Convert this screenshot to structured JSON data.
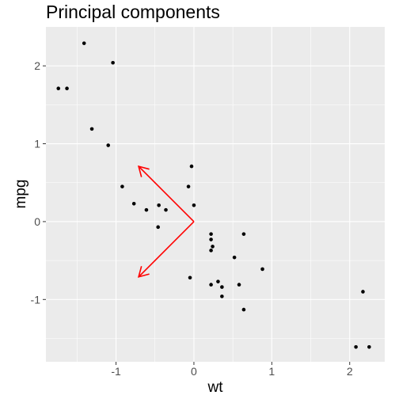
{
  "chart_data": {
    "type": "scatter",
    "title": "Principal components",
    "xlabel": "wt",
    "ylabel": "mpg",
    "xlim": [
      -1.9,
      2.45
    ],
    "ylim": [
      -1.8,
      2.5
    ],
    "x_ticks": [
      -1,
      0,
      1,
      2
    ],
    "y_ticks": [
      -1,
      0,
      1,
      2
    ],
    "grid": true,
    "legend": "none",
    "colors": {
      "panel": "#ebebeb",
      "grid_major": "#ffffff",
      "points": "#000000",
      "arrows": "#ff0000",
      "tick_label": "#4d4d4d"
    },
    "points": [
      {
        "x": -1.41,
        "y": 2.29
      },
      {
        "x": -1.04,
        "y": 2.04
      },
      {
        "x": -1.74,
        "y": 1.71
      },
      {
        "x": -1.63,
        "y": 1.71
      },
      {
        "x": -1.31,
        "y": 1.19
      },
      {
        "x": -1.1,
        "y": 0.98
      },
      {
        "x": -0.92,
        "y": 0.45
      },
      {
        "x": -0.77,
        "y": 0.23
      },
      {
        "x": -0.61,
        "y": 0.15
      },
      {
        "x": -0.45,
        "y": 0.21
      },
      {
        "x": -0.36,
        "y": 0.15
      },
      {
        "x": -0.46,
        "y": -0.07
      },
      {
        "x": -0.03,
        "y": 0.71
      },
      {
        "x": -0.07,
        "y": 0.45
      },
      {
        "x": 0.0,
        "y": 0.21
      },
      {
        "x": -0.05,
        "y": -0.72
      },
      {
        "x": 0.22,
        "y": -0.16
      },
      {
        "x": 0.22,
        "y": -0.23
      },
      {
        "x": 0.24,
        "y": -0.32
      },
      {
        "x": 0.22,
        "y": -0.37
      },
      {
        "x": 0.64,
        "y": -0.16
      },
      {
        "x": 0.52,
        "y": -0.46
      },
      {
        "x": 0.88,
        "y": -0.61
      },
      {
        "x": 0.22,
        "y": -0.81
      },
      {
        "x": 0.31,
        "y": -0.77
      },
      {
        "x": 0.36,
        "y": -0.84
      },
      {
        "x": 0.58,
        "y": -0.81
      },
      {
        "x": 0.36,
        "y": -0.96
      },
      {
        "x": 0.64,
        "y": -1.13
      },
      {
        "x": 2.17,
        "y": -0.9
      },
      {
        "x": 2.08,
        "y": -1.61
      },
      {
        "x": 2.25,
        "y": -1.61
      }
    ],
    "arrows": [
      {
        "from": [
          0,
          0
        ],
        "to": [
          -0.71,
          0.71
        ]
      },
      {
        "from": [
          0,
          0
        ],
        "to": [
          -0.71,
          -0.71
        ]
      }
    ]
  }
}
